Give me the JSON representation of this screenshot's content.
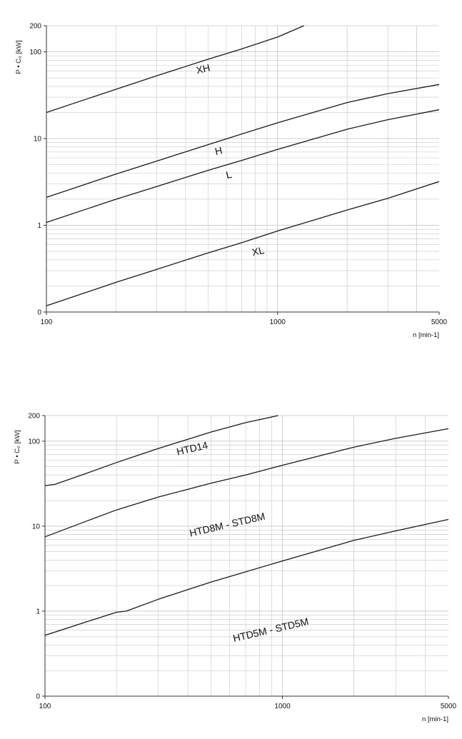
{
  "chart_data": [
    {
      "type": "line",
      "xscale": "log",
      "yscale": "log",
      "xlim": [
        100,
        5000
      ],
      "ylim": [
        0.1,
        200
      ],
      "ylabel": "P • C₀  [kW]",
      "xlabel": "n [min-1]",
      "xticks": [
        {
          "value": 100,
          "label": "100"
        },
        {
          "value": 1000,
          "label": "1000"
        },
        {
          "value": 5000,
          "label": "5000"
        }
      ],
      "yticks": [
        {
          "value": 0.1,
          "label": "0"
        },
        {
          "value": 1,
          "label": "1"
        },
        {
          "value": 10,
          "label": "10"
        },
        {
          "value": 100,
          "label": "100"
        },
        {
          "value": 200,
          "label": "200"
        }
      ],
      "grid": true,
      "series": [
        {
          "name": "XH",
          "x": [
            100,
            200,
            300,
            500,
            700,
            1000,
            1300
          ],
          "y": [
            20,
            37,
            53,
            82,
            108,
            148,
            200
          ]
        },
        {
          "name": "H",
          "x": [
            100,
            200,
            300,
            500,
            700,
            1000,
            2000,
            3000,
            5000
          ],
          "y": [
            2.1,
            3.9,
            5.5,
            8.5,
            11.3,
            15.2,
            26,
            33,
            42
          ]
        },
        {
          "name": "L",
          "x": [
            100,
            200,
            300,
            500,
            700,
            1000,
            2000,
            3000,
            5000
          ],
          "y": [
            1.08,
            2.0,
            2.8,
            4.3,
            5.6,
            7.5,
            12.8,
            16.5,
            21.5
          ]
        },
        {
          "name": "XL",
          "x": [
            100,
            200,
            300,
            500,
            700,
            1000,
            2000,
            3000,
            5000
          ],
          "y": [
            0.118,
            0.22,
            0.31,
            0.48,
            0.63,
            0.86,
            1.5,
            2.05,
            3.2
          ]
        }
      ],
      "annotations": [
        {
          "text": "XH",
          "x": 480,
          "y": 58,
          "angle": -13
        },
        {
          "text": "H",
          "x": 560,
          "y": 6.6,
          "angle": -13
        },
        {
          "text": "L",
          "x": 620,
          "y": 3.5,
          "angle": -13
        },
        {
          "text": "XL",
          "x": 830,
          "y": 0.46,
          "angle": -13
        }
      ]
    },
    {
      "type": "line",
      "xscale": "log",
      "yscale": "log",
      "xlim": [
        100,
        5000
      ],
      "ylim": [
        0.1,
        200
      ],
      "ylabel": "P • C₀  [kW]",
      "xlabel": "n [min-1]",
      "xticks": [
        {
          "value": 100,
          "label": "100"
        },
        {
          "value": 1000,
          "label": "1000"
        },
        {
          "value": 5000,
          "label": "5000"
        }
      ],
      "yticks": [
        {
          "value": 0.1,
          "label": "0"
        },
        {
          "value": 1,
          "label": "1"
        },
        {
          "value": 10,
          "label": "10"
        },
        {
          "value": 100,
          "label": "100"
        },
        {
          "value": 200,
          "label": "200"
        }
      ],
      "grid": true,
      "series": [
        {
          "name": "HTD14",
          "x": [
            100,
            110,
            150,
            200,
            300,
            500,
            700,
            1000
          ],
          "y": [
            30,
            31,
            42,
            56,
            82,
            128,
            165,
            205
          ]
        },
        {
          "name": "HTD8M - STD8M",
          "x": [
            100,
            150,
            200,
            300,
            500,
            700,
            1000,
            2000,
            3000,
            5000
          ],
          "y": [
            7.5,
            11.5,
            15.5,
            22,
            32,
            40,
            52,
            85,
            108,
            140
          ]
        },
        {
          "name": "HTD5M - STD5M",
          "x": [
            100,
            150,
            200,
            220,
            300,
            500,
            700,
            1000,
            2000,
            3000,
            5000
          ],
          "y": [
            0.52,
            0.75,
            0.97,
            1.0,
            1.38,
            2.2,
            2.9,
            3.9,
            6.8,
            8.8,
            12
          ]
        }
      ],
      "annotations": [
        {
          "text": "HTD14",
          "x": 420,
          "y": 75,
          "angle": -13
        },
        {
          "text": "HTD8M - STD8M",
          "x": 590,
          "y": 9.5,
          "angle": -13
        },
        {
          "text": "HTD5M - STD5M",
          "x": 900,
          "y": 0.55,
          "angle": -13
        }
      ]
    }
  ]
}
